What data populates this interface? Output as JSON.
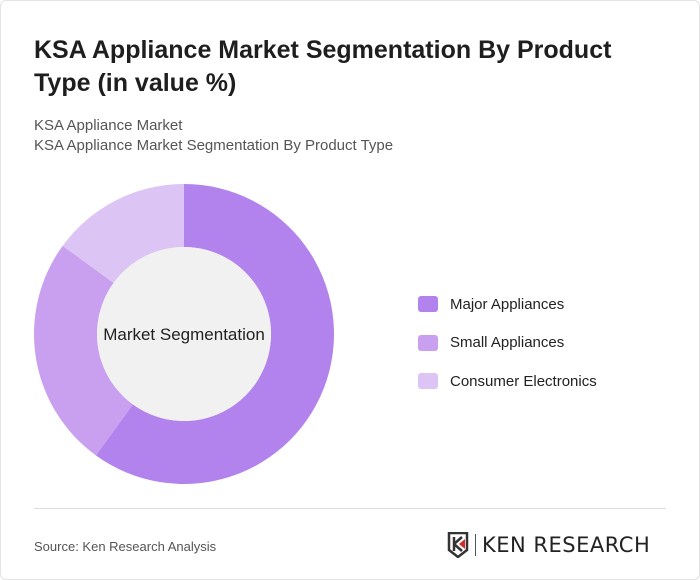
{
  "title": "KSA Appliance Market Segmentation By Product Type (in value %)",
  "subtitle1": "KSA Appliance Market",
  "subtitle2": "KSA Appliance Market Segmentation By Product Type",
  "source": "Source: Ken Research Analysis",
  "logo_text": "KEN RESEARCH",
  "chart_data": {
    "type": "pie",
    "variant": "donut",
    "center_label": "Market Segmentation",
    "categories": [
      "Major Appliances",
      "Small Appliances",
      "Consumer Electronics"
    ],
    "values": [
      60,
      25,
      15
    ],
    "colors": [
      "#b283ec",
      "#c9a0ef",
      "#dcc4f5"
    ],
    "legend_position": "right"
  }
}
